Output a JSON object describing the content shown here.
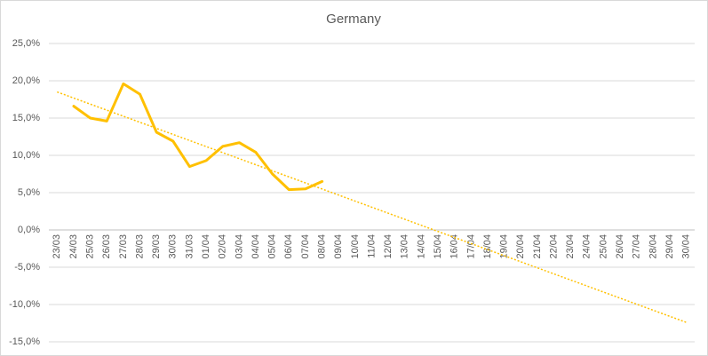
{
  "chart_data": {
    "type": "line",
    "title": "Germany",
    "categories": [
      "23/03",
      "24/03",
      "25/03",
      "26/03",
      "27/03",
      "28/03",
      "29/03",
      "30/03",
      "31/03",
      "01/04",
      "02/04",
      "03/04",
      "04/04",
      "05/04",
      "06/04",
      "07/04",
      "08/04",
      "09/04",
      "10/04",
      "11/04",
      "12/04",
      "13/04",
      "14/04",
      "15/04",
      "16/04",
      "17/04",
      "18/04",
      "19/04",
      "20/04",
      "21/04",
      "22/04",
      "23/04",
      "24/04",
      "25/04",
      "26/04",
      "27/04",
      "28/04",
      "29/04",
      "30/04"
    ],
    "series": [
      {
        "color": "#ffc000",
        "values": [
          null,
          16.6,
          15.0,
          14.6,
          19.6,
          18.2,
          13.1,
          11.9,
          8.5,
          9.3,
          11.2,
          11.7,
          10.4,
          7.5,
          5.4,
          5.5,
          6.5,
          null,
          null,
          null,
          null,
          null,
          null,
          null,
          null,
          null,
          null,
          null,
          null,
          null,
          null,
          null,
          null,
          null,
          null,
          null,
          null,
          null,
          null
        ]
      }
    ],
    "trendline": {
      "color": "#ffc000",
      "start": 18.5,
      "end": -12.4
    },
    "ylim": [
      -15,
      25
    ],
    "yticks": [
      {
        "value": -15,
        "label": "-15,0%"
      },
      {
        "value": -10,
        "label": "-10,0%"
      },
      {
        "value": -5,
        "label": "-5,0%"
      },
      {
        "value": 0,
        "label": "0,0%"
      },
      {
        "value": 5,
        "label": "5,0%"
      },
      {
        "value": 10,
        "label": "10,0%"
      },
      {
        "value": 15,
        "label": "15,0%"
      },
      {
        "value": 20,
        "label": "20,0%"
      },
      {
        "value": 25,
        "label": "25,0%"
      }
    ],
    "grid": true
  }
}
